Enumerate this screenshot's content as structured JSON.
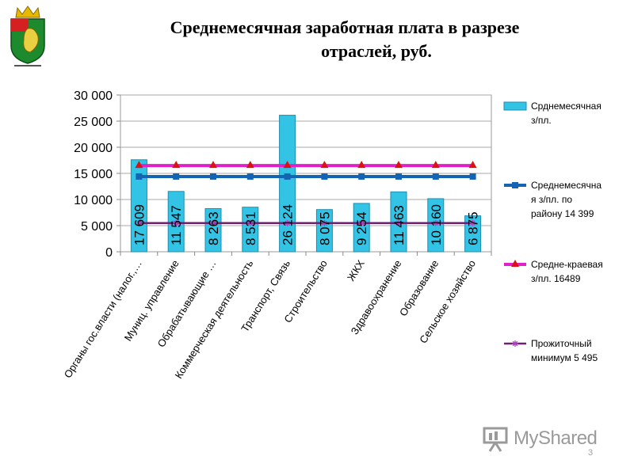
{
  "slide": {
    "title_line1": "Среднемесячная заработная плата в разрезе",
    "title_line2": "отраслей, руб.",
    "page_number": "3",
    "watermark": "MyShared"
  },
  "colors": {
    "bar_fill": "#33c3e5",
    "bar_stroke": "#1e8eb0",
    "district_line": "#1464b4",
    "regional_line": "#e020c8",
    "regional_marker": "#dd1111",
    "subsistence_line": "#702070",
    "subsistence_marker": "#b040c0"
  },
  "chart_data": {
    "type": "bar",
    "categories": [
      "Органы гос.власти (налог.,…",
      "Муниц. управление",
      "Обрабатывающие …",
      "Коммерческая деятельность",
      "Транспорт, Связь",
      "Строительство",
      "ЖКХ",
      "Здравоохранение",
      "Образование",
      "Сельское хозяйство"
    ],
    "values": [
      17609,
      11547,
      8263,
      8531,
      26124,
      8075,
      9254,
      11463,
      10160,
      6875
    ],
    "value_labels": [
      "17 609",
      "11 547",
      "8 263",
      "8 531",
      "26 124",
      "8 075",
      "9 254",
      "11 463",
      "10 160",
      "6 875"
    ],
    "lines": [
      {
        "key": "district",
        "value": 14399,
        "color": "#1464b4",
        "marker": "square"
      },
      {
        "key": "regional",
        "value": 16489,
        "color": "#e020c8",
        "marker": "triangle"
      },
      {
        "key": "subsistence",
        "value": 5495,
        "color": "#702070",
        "marker": "star"
      }
    ],
    "y_ticks": [
      0,
      5000,
      10000,
      15000,
      20000,
      25000,
      30000
    ],
    "y_tick_labels": [
      "0",
      "5 000",
      "10 000",
      "15 000",
      "20 000",
      "25 000",
      "30 000"
    ],
    "ylim": [
      0,
      30000
    ],
    "grid": true,
    "legend_position": "right",
    "legend": [
      {
        "key": "bars",
        "marker": "bar",
        "lines": [
          "Срднемесячная",
          "з/пл."
        ]
      },
      {
        "key": "district",
        "marker": "square",
        "lines": [
          "Среднемесячна",
          "я з/пл. по",
          "району 14 399"
        ]
      },
      {
        "key": "regional",
        "marker": "triangle",
        "lines": [
          "Средне-краевая",
          "з/пл. 16489"
        ]
      },
      {
        "key": "subsistence",
        "marker": "star",
        "lines": [
          "Прожиточный",
          "минимум 5 495"
        ]
      }
    ]
  }
}
